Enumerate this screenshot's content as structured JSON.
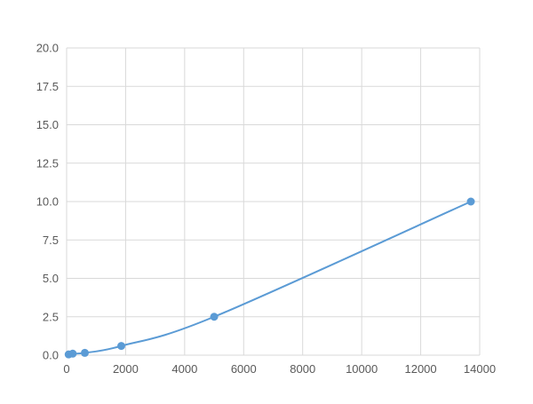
{
  "chart_data": {
    "type": "line",
    "title": "",
    "xlabel": "",
    "ylabel": "",
    "xlim": [
      0,
      14000
    ],
    "ylim": [
      0,
      20
    ],
    "grid": true,
    "legend": "none",
    "x_ticks": [
      "0",
      "2000",
      "4000",
      "6000",
      "8000",
      "10000",
      "12000",
      "14000"
    ],
    "y_ticks": [
      "0.0",
      "2.5",
      "5.0",
      "7.5",
      "10.0",
      "12.5",
      "15.0",
      "17.5",
      "20.0"
    ],
    "series": [
      {
        "x": [
          69,
          206,
          617,
          1852,
          5000,
          13700
        ],
        "y": [
          0.05,
          0.1,
          0.15,
          0.6,
          2.5,
          10.0
        ],
        "color": "#5b9bd5",
        "marker": "circle",
        "smooth": true
      }
    ]
  }
}
